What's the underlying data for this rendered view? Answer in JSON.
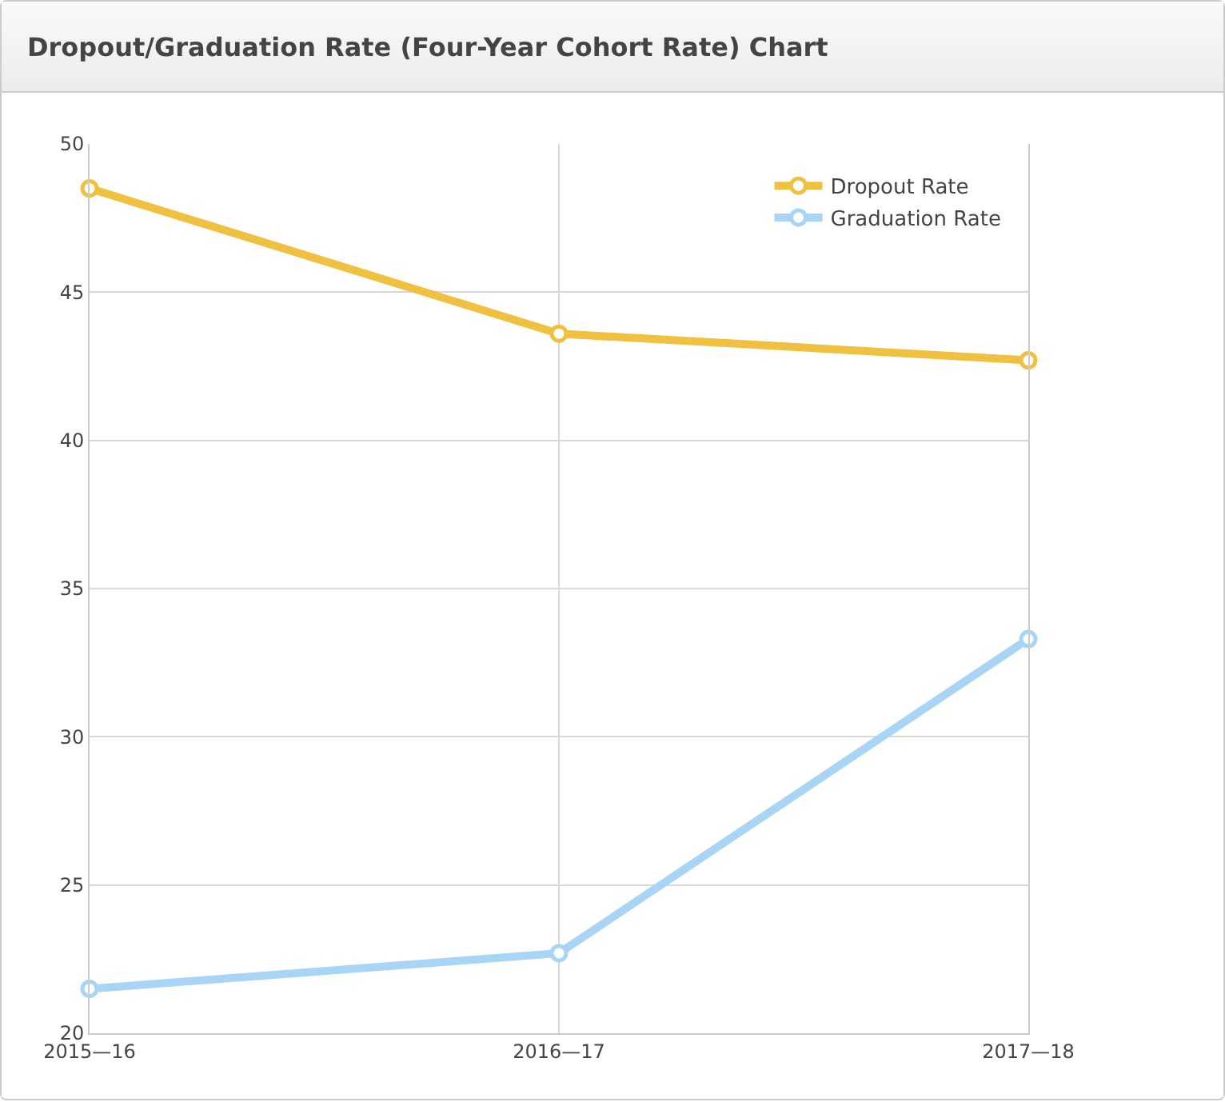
{
  "chart_data": {
    "type": "line",
    "title": "Dropout/Graduation Rate (Four-Year Cohort Rate) Chart",
    "categories": [
      "2015—16",
      "2016—17",
      "2017—18"
    ],
    "series": [
      {
        "name": "Dropout Rate",
        "color": "#f0c040",
        "values": [
          48.5,
          43.6,
          42.7
        ]
      },
      {
        "name": "Graduation Rate",
        "color": "#a8d4f5",
        "values": [
          21.5,
          22.7,
          33.3
        ]
      }
    ],
    "ylim": [
      20,
      50
    ],
    "yticks": [
      20,
      25,
      30,
      35,
      40,
      45,
      50
    ],
    "grid": true,
    "legend": "top right",
    "marker": "circle",
    "line_style": "solid"
  }
}
